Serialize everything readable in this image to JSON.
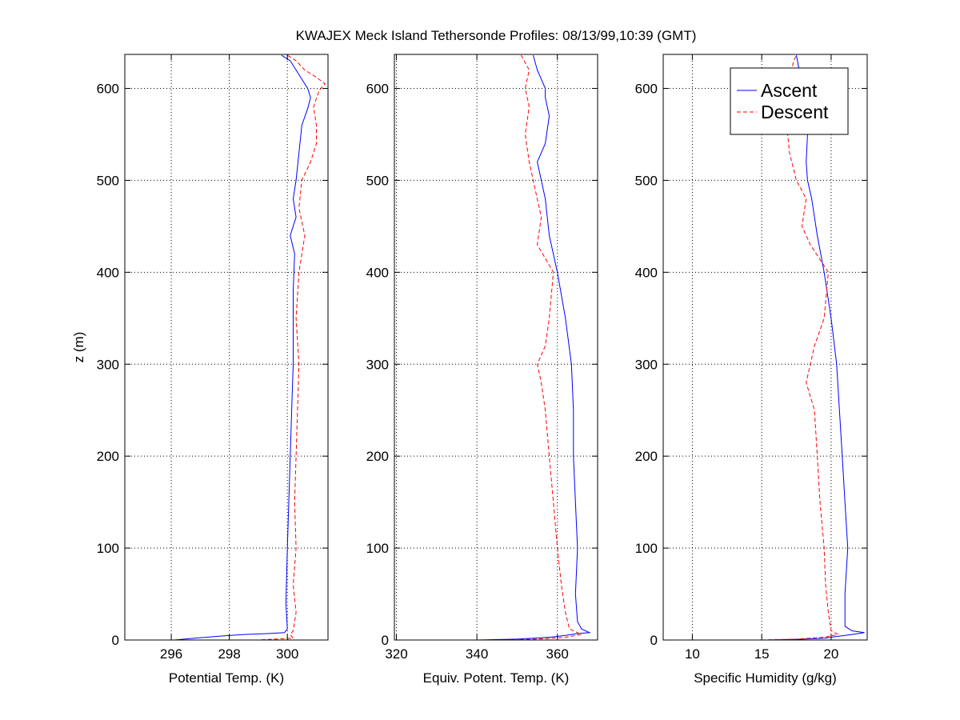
{
  "chart_data": {
    "title": "KWAJEX Meck Island Tethersonde Profiles: 08/13/99,10:39 (GMT)",
    "legend": {
      "placement": "top-right of third panel",
      "entries": [
        "Ascent",
        "Descent"
      ]
    },
    "shared_y": {
      "label": "z (m)",
      "ylim": [
        0,
        637
      ],
      "ticks": [
        0,
        100,
        200,
        300,
        400,
        500,
        600
      ]
    },
    "colors": {
      "ascent": "#0000ff",
      "descent": "#ff0000"
    },
    "panels": [
      {
        "type": "line",
        "xlabel": "Potential Temp. (K)",
        "xlim": [
          294.4,
          301.4
        ],
        "xticks": [
          296,
          298,
          300
        ],
        "grid": true,
        "series": [
          {
            "name": "Ascent",
            "style": "solid",
            "points": [
              [
                294.5,
                0
              ],
              [
                295.4,
                0
              ],
              [
                296.1,
                0
              ],
              [
                296.8,
                2
              ],
              [
                297.6,
                4
              ],
              [
                298.5,
                6
              ],
              [
                299.3,
                7
              ],
              [
                299.9,
                8
              ],
              [
                300.0,
                12
              ],
              [
                299.95,
                40
              ],
              [
                300.0,
                100
              ],
              [
                300.05,
                150
              ],
              [
                300.1,
                200
              ],
              [
                300.15,
                250
              ],
              [
                300.2,
                300
              ],
              [
                300.2,
                340
              ],
              [
                300.2,
                380
              ],
              [
                300.25,
                420
              ],
              [
                300.1,
                440
              ],
              [
                300.3,
                460
              ],
              [
                300.2,
                480
              ],
              [
                300.3,
                500
              ],
              [
                300.4,
                530
              ],
              [
                300.5,
                560
              ],
              [
                300.7,
                578
              ],
              [
                300.8,
                590
              ],
              [
                300.7,
                600
              ],
              [
                300.5,
                610
              ],
              [
                300.3,
                620
              ],
              [
                300.1,
                630
              ],
              [
                299.8,
                636
              ]
            ]
          },
          {
            "name": "Descent",
            "style": "dashed",
            "points": [
              [
                298.0,
                0
              ],
              [
                299.0,
                0
              ],
              [
                300.2,
                2
              ],
              [
                300.1,
                6
              ],
              [
                300.2,
                10
              ],
              [
                300.3,
                30
              ],
              [
                300.2,
                60
              ],
              [
                300.3,
                100
              ],
              [
                300.25,
                150
              ],
              [
                300.3,
                200
              ],
              [
                300.35,
                250
              ],
              [
                300.4,
                300
              ],
              [
                300.3,
                350
              ],
              [
                300.4,
                400
              ],
              [
                300.6,
                440
              ],
              [
                300.4,
                470
              ],
              [
                300.5,
                500
              ],
              [
                300.8,
                520
              ],
              [
                301.0,
                540
              ],
              [
                301.0,
                560
              ],
              [
                300.9,
                580
              ],
              [
                301.1,
                598
              ],
              [
                301.3,
                605
              ],
              [
                301.0,
                612
              ],
              [
                300.6,
                620
              ],
              [
                300.3,
                630
              ],
              [
                300.0,
                636
              ]
            ]
          }
        ]
      },
      {
        "type": "line",
        "xlabel": "Equiv. Potent. Temp. (K)",
        "xlim": [
          319.5,
          370
        ],
        "xticks": [
          320,
          340,
          360
        ],
        "grid": true,
        "series": [
          {
            "name": "Ascent",
            "style": "solid",
            "points": [
              [
                325,
                0
              ],
              [
                340,
                0
              ],
              [
                350,
                1
              ],
              [
                358,
                3
              ],
              [
                362,
                5
              ],
              [
                365,
                7
              ],
              [
                368,
                8
              ],
              [
                366,
                12
              ],
              [
                365,
                20
              ],
              [
                364.5,
                50
              ],
              [
                365,
                100
              ],
              [
                364.5,
                150
              ],
              [
                364,
                200
              ],
              [
                364,
                250
              ],
              [
                363.5,
                300
              ],
              [
                362,
                350
              ],
              [
                360,
                400
              ],
              [
                358,
                440
              ],
              [
                357,
                480
              ],
              [
                356,
                500
              ],
              [
                355,
                520
              ],
              [
                357,
                540
              ],
              [
                358,
                570
              ],
              [
                357,
                590
              ],
              [
                357,
                600
              ],
              [
                355,
                620
              ],
              [
                354,
                636
              ]
            ]
          },
          {
            "name": "Descent",
            "style": "dashed",
            "points": [
              [
                330,
                0
              ],
              [
                345,
                0
              ],
              [
                355,
                1
              ],
              [
                362,
                3
              ],
              [
                366,
                6
              ],
              [
                363,
                12
              ],
              [
                362,
                30
              ],
              [
                361,
                60
              ],
              [
                360,
                100
              ],
              [
                359,
                150
              ],
              [
                358,
                200
              ],
              [
                357,
                250
              ],
              [
                356,
                280
              ],
              [
                355,
                300
              ],
              [
                357,
                320
              ],
              [
                358,
                350
              ],
              [
                359,
                400
              ],
              [
                355,
                430
              ],
              [
                356,
                460
              ],
              [
                354,
                500
              ],
              [
                353,
                520
              ],
              [
                352,
                550
              ],
              [
                353,
                580
              ],
              [
                352,
                600
              ],
              [
                353,
                620
              ],
              [
                351,
                636
              ]
            ]
          }
        ]
      },
      {
        "type": "line",
        "xlabel": "Specific Humidity (g/kg)",
        "xlim": [
          7.9,
          22.6
        ],
        "xticks": [
          10,
          15,
          20
        ],
        "grid": true,
        "series": [
          {
            "name": "Ascent",
            "style": "solid",
            "points": [
              [
                8,
                0
              ],
              [
                12,
                0
              ],
              [
                15.5,
                0
              ],
              [
                18,
                1
              ],
              [
                19.5,
                2
              ],
              [
                20.5,
                4
              ],
              [
                21.5,
                6
              ],
              [
                22.4,
                8
              ],
              [
                21.5,
                10
              ],
              [
                21,
                15
              ],
              [
                21,
                50
              ],
              [
                21.2,
                100
              ],
              [
                21,
                150
              ],
              [
                20.8,
                200
              ],
              [
                20.6,
                250
              ],
              [
                20.4,
                300
              ],
              [
                20,
                350
              ],
              [
                19.5,
                400
              ],
              [
                19,
                440
              ],
              [
                18.6,
                480
              ],
              [
                18.3,
                500
              ],
              [
                18.2,
                520
              ],
              [
                18.3,
                550
              ],
              [
                18.1,
                575
              ],
              [
                17.9,
                600
              ],
              [
                17.7,
                620
              ],
              [
                17.5,
                636
              ]
            ]
          },
          {
            "name": "Descent",
            "style": "dashed",
            "points": [
              [
                9,
                0
              ],
              [
                11,
                0
              ],
              [
                15,
                0
              ],
              [
                17.5,
                1
              ],
              [
                19.5,
                3
              ],
              [
                20.5,
                6
              ],
              [
                20,
                10
              ],
              [
                19.8,
                30
              ],
              [
                19.6,
                60
              ],
              [
                19.5,
                100
              ],
              [
                19.2,
                150
              ],
              [
                19,
                200
              ],
              [
                18.8,
                250
              ],
              [
                18.2,
                280
              ],
              [
                18.8,
                320
              ],
              [
                19.5,
                350
              ],
              [
                19.8,
                400
              ],
              [
                18.5,
                430
              ],
              [
                17.9,
                450
              ],
              [
                18.2,
                480
              ],
              [
                17.5,
                500
              ],
              [
                17.0,
                530
              ],
              [
                16.8,
                560
              ],
              [
                17.1,
                590
              ],
              [
                17.0,
                610
              ],
              [
                17.3,
                630
              ],
              [
                17.5,
                636
              ]
            ]
          }
        ]
      }
    ]
  }
}
